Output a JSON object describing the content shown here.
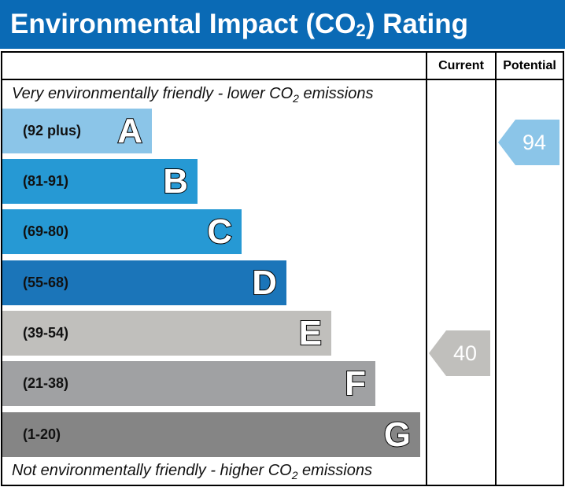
{
  "title": {
    "main": "Environmental Impact (CO",
    "sub": "2",
    "end": ") Rating"
  },
  "headers": {
    "current": "Current",
    "potential": "Potential"
  },
  "top_note": {
    "pre": "Very environmentally friendly - lower CO",
    "sub": "2",
    "post": " emissions"
  },
  "bottom_note": {
    "pre": "Not environmentally friendly - higher CO",
    "sub": "2",
    "post": " emissions"
  },
  "bands": [
    {
      "letter": "A",
      "range": "(92 plus)",
      "color": "#8bc5e8"
    },
    {
      "letter": "B",
      "range": "(81-91)",
      "color": "#2699d4"
    },
    {
      "letter": "C",
      "range": "(69-80)",
      "color": "#2699d4"
    },
    {
      "letter": "D",
      "range": "(55-68)",
      "color": "#1b75b9"
    },
    {
      "letter": "E",
      "range": "(39-54)",
      "color": "#c0bfbc"
    },
    {
      "letter": "F",
      "range": "(21-38)",
      "color": "#a0a1a3"
    },
    {
      "letter": "G",
      "range": "(1-20)",
      "color": "#858585"
    }
  ],
  "current": {
    "value": "40",
    "band": "E",
    "color": "#c0bfbc"
  },
  "potential": {
    "value": "94",
    "band": "A",
    "color": "#8bc5e8"
  }
}
